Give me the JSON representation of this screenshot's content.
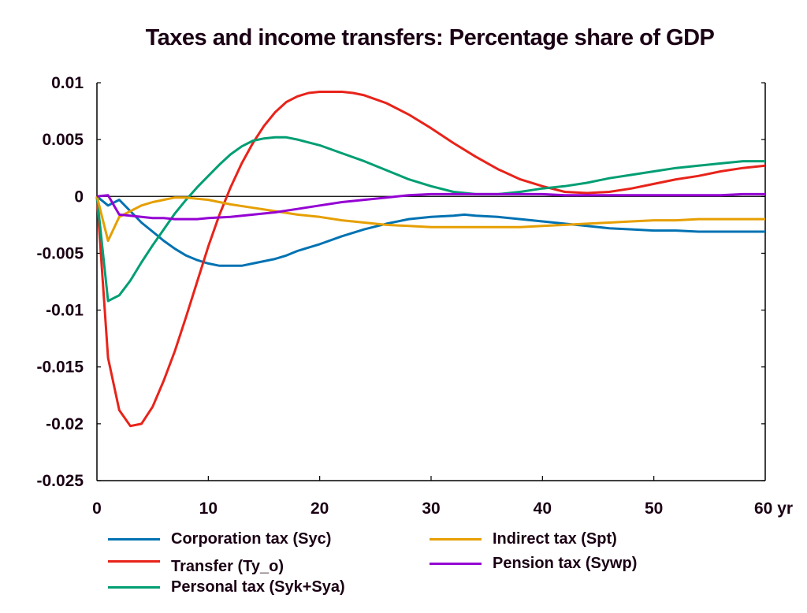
{
  "chart_data": {
    "type": "line",
    "title": "Taxes and income transfers: Percentage share of GDP",
    "xlabel": "",
    "ylabel": "",
    "x_unit_suffix": " yr",
    "xlim": [
      0,
      60
    ],
    "ylim": [
      -0.025,
      0.01
    ],
    "x_ticks": [
      0,
      10,
      20,
      30,
      40,
      50,
      60
    ],
    "x_tick_labels": [
      "0",
      "10",
      "20",
      "30",
      "40",
      "50",
      "60 yr"
    ],
    "y_ticks": [
      0.01,
      0.005,
      0,
      -0.005,
      -0.01,
      -0.015,
      -0.02,
      -0.025
    ],
    "y_tick_labels": [
      "0.01",
      "0.005",
      "0",
      "-0.005",
      "-0.01",
      "-0.015",
      "-0.02",
      "-0.025"
    ],
    "zero_line": true,
    "grid": false,
    "legend_position": "bottom",
    "series": [
      {
        "name": "Corporation tax (Syc)",
        "color": "#0072b2",
        "x": [
          0,
          1,
          2,
          3,
          4,
          5,
          6,
          7,
          8,
          9,
          10,
          11,
          12,
          13,
          14,
          15,
          16,
          17,
          18,
          19,
          20,
          22,
          24,
          26,
          28,
          30,
          32,
          33,
          34,
          36,
          38,
          40,
          42,
          44,
          46,
          48,
          50,
          52,
          54,
          56,
          58,
          60
        ],
        "y": [
          0,
          -0.0008,
          -0.0003,
          -0.0013,
          -0.0023,
          -0.0031,
          -0.0039,
          -0.0046,
          -0.0052,
          -0.0056,
          -0.0059,
          -0.0061,
          -0.0061,
          -0.0061,
          -0.0059,
          -0.0057,
          -0.0055,
          -0.0052,
          -0.0048,
          -0.0045,
          -0.0042,
          -0.0035,
          -0.0029,
          -0.0024,
          -0.002,
          -0.0018,
          -0.0017,
          -0.0016,
          -0.0017,
          -0.0018,
          -0.002,
          -0.0022,
          -0.0024,
          -0.0026,
          -0.0028,
          -0.0029,
          -0.003,
          -0.003,
          -0.0031,
          -0.0031,
          -0.0031,
          -0.0031
        ]
      },
      {
        "name": "Transfer (Ty_o)",
        "color": "#e8231a",
        "x": [
          0,
          1,
          2,
          3,
          4,
          5,
          6,
          7,
          8,
          9,
          10,
          11,
          12,
          13,
          14,
          15,
          16,
          17,
          18,
          19,
          20,
          21,
          22,
          23,
          24,
          26,
          28,
          30,
          32,
          34,
          36,
          38,
          40,
          42,
          44,
          46,
          48,
          50,
          52,
          54,
          56,
          58,
          60
        ],
        "y": [
          0,
          -0.0142,
          -0.0188,
          -0.0202,
          -0.02,
          -0.0185,
          -0.0162,
          -0.0136,
          -0.0106,
          -0.0075,
          -0.0044,
          -0.0016,
          0.0008,
          0.0029,
          0.0047,
          0.0062,
          0.0074,
          0.0083,
          0.0088,
          0.0091,
          0.0092,
          0.0092,
          0.0092,
          0.0091,
          0.0089,
          0.0082,
          0.0072,
          0.006,
          0.0047,
          0.0035,
          0.0024,
          0.0015,
          0.0009,
          0.0004,
          0.0003,
          0.0004,
          0.0007,
          0.0011,
          0.0015,
          0.0018,
          0.0022,
          0.0025,
          0.0027
        ]
      },
      {
        "name": "Personal tax (Syk+Sya)",
        "color": "#009e73",
        "x": [
          0,
          1,
          2,
          3,
          4,
          5,
          6,
          7,
          8,
          9,
          10,
          11,
          12,
          13,
          14,
          15,
          16,
          17,
          18,
          20,
          22,
          24,
          26,
          28,
          30,
          32,
          34,
          36,
          38,
          40,
          42,
          44,
          46,
          48,
          50,
          52,
          54,
          56,
          58,
          60
        ],
        "y": [
          0,
          -0.0092,
          -0.0087,
          -0.0074,
          -0.0058,
          -0.0043,
          -0.0029,
          -0.0015,
          -0.0003,
          0.0008,
          0.0018,
          0.0028,
          0.0037,
          0.0044,
          0.0049,
          0.0051,
          0.0052,
          0.0052,
          0.005,
          0.0045,
          0.0038,
          0.0031,
          0.0023,
          0.0015,
          0.0009,
          0.0004,
          0.0002,
          0.0002,
          0.0004,
          0.0007,
          0.0009,
          0.0012,
          0.0016,
          0.0019,
          0.0022,
          0.0025,
          0.0027,
          0.0029,
          0.0031,
          0.0031
        ]
      },
      {
        "name": "Indirect tax (Spt)",
        "color": "#e69f00",
        "x": [
          0,
          1,
          2,
          3,
          4,
          5,
          6,
          7,
          8,
          9,
          10,
          12,
          14,
          16,
          18,
          20,
          22,
          24,
          26,
          28,
          30,
          32,
          34,
          36,
          38,
          40,
          42,
          44,
          46,
          48,
          50,
          52,
          54,
          56,
          58,
          60
        ],
        "y": [
          0,
          -0.0039,
          -0.0018,
          -0.0013,
          -0.0008,
          -0.0005,
          -0.0003,
          -0.0001,
          -0.0001,
          -0.0002,
          -0.0003,
          -0.0007,
          -0.001,
          -0.0013,
          -0.0016,
          -0.0018,
          -0.0021,
          -0.0023,
          -0.0025,
          -0.0026,
          -0.0027,
          -0.0027,
          -0.0027,
          -0.0027,
          -0.0027,
          -0.0026,
          -0.0025,
          -0.0024,
          -0.0023,
          -0.0022,
          -0.0021,
          -0.0021,
          -0.002,
          -0.002,
          -0.002,
          -0.002
        ]
      },
      {
        "name": "Pension tax (Sywp)",
        "color": "#9400d3",
        "x": [
          0,
          1,
          2,
          3,
          4,
          5,
          6,
          7,
          8,
          9,
          10,
          12,
          14,
          16,
          18,
          20,
          22,
          24,
          26,
          28,
          30,
          32,
          34,
          36,
          38,
          40,
          42,
          44,
          46,
          48,
          50,
          52,
          54,
          56,
          58,
          60
        ],
        "y": [
          0,
          0.0001,
          -0.0016,
          -0.0017,
          -0.0018,
          -0.0019,
          -0.0019,
          -0.002,
          -0.002,
          -0.002,
          -0.0019,
          -0.0018,
          -0.0016,
          -0.0014,
          -0.0011,
          -0.0008,
          -0.0005,
          -0.0003,
          -0.0001,
          0.0001,
          0.0002,
          0.0002,
          0.0002,
          0.0002,
          0.0002,
          0.0002,
          0.0001,
          0.0001,
          0.0001,
          0.0001,
          0.0001,
          0.0001,
          0.0001,
          0.0001,
          0.0002,
          0.0002
        ]
      }
    ]
  },
  "legend": {
    "items": [
      {
        "label": "Corporation tax (Syc)",
        "color": "#0072b2"
      },
      {
        "label": "Transfer (Ty_o)",
        "color": "#e8231a"
      },
      {
        "label": "Personal tax (Syk+Sya)",
        "color": "#009e73"
      },
      {
        "label": "Indirect tax (Spt)",
        "color": "#e69f00"
      },
      {
        "label": "Pension tax (Sywp)",
        "color": "#9400d3"
      }
    ]
  }
}
